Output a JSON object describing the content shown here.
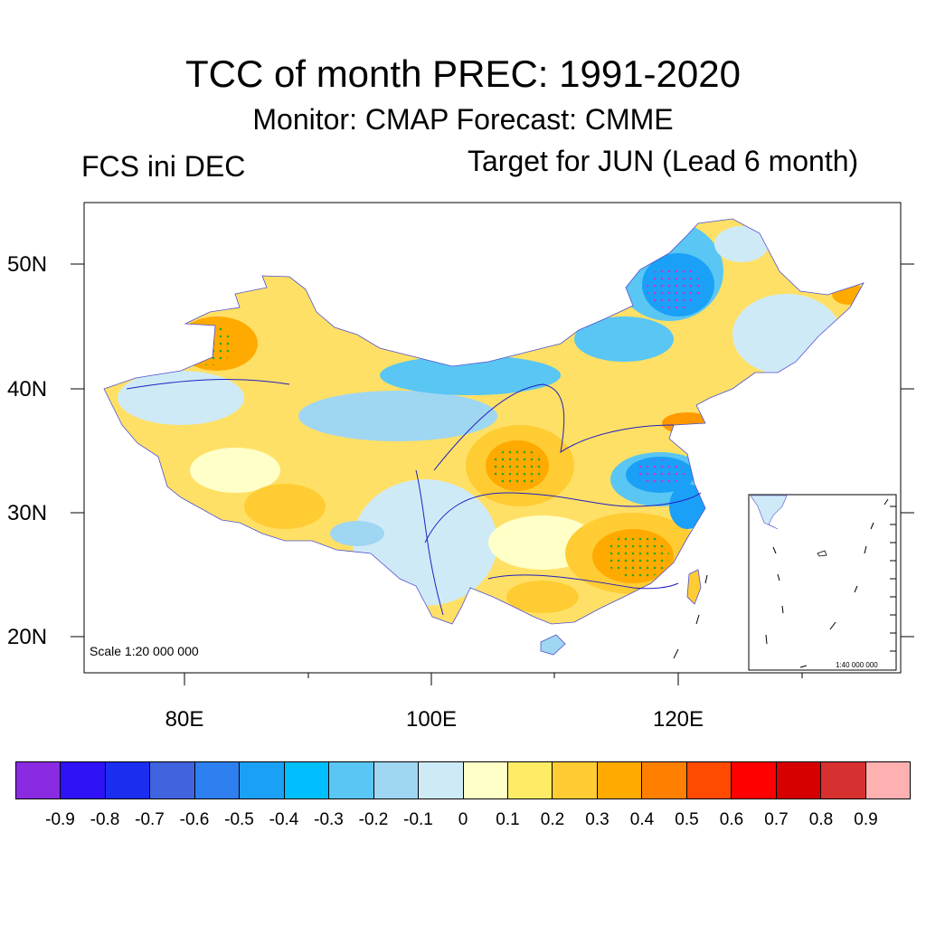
{
  "title": "TCC of month PREC: 1991-2020",
  "subtitle": "Monitor: CMAP   Forecast: CMME",
  "left_label": "FCS ini DEC",
  "right_label": "Target for JUN (Lead 6 month)",
  "lat_labels": [
    "50N",
    "40N",
    "30N",
    "20N"
  ],
  "lon_labels": [
    "80E",
    "100E",
    "120E"
  ],
  "scale_main": "Scale 1:20 000 000",
  "scale_inset": "1:40 000 000",
  "colorbar": {
    "colors": [
      "#8a2be2",
      "#2f12f5",
      "#1c2df2",
      "#4064df",
      "#2e7ff0",
      "#1aa0f7",
      "#00bfff",
      "#5ac6f3",
      "#9fd6f2",
      "#cfeaf7",
      "#ffffc8",
      "#ffec66",
      "#ffcc33",
      "#ffaa00",
      "#ff7f00",
      "#ff4a00",
      "#ff0000",
      "#d60000",
      "#d63030",
      "#ffb0b0"
    ],
    "ticks": [
      "-0.9",
      "-0.8",
      "-0.7",
      "-0.6",
      "-0.5",
      "-0.4",
      "-0.3",
      "-0.2",
      "-0.1",
      "0",
      "0.1",
      "0.2",
      "0.3",
      "0.4",
      "0.5",
      "0.6",
      "0.7",
      "0.8",
      "0.9"
    ]
  },
  "regions": [
    {
      "name": "north-xinjiang-positive",
      "level": "0.4",
      "color": "#ffb300"
    },
    {
      "name": "northeast-negative",
      "level": "-0.4",
      "color": "#1aa0f7"
    },
    {
      "name": "inner-mongolia-negative",
      "level": "-0.3",
      "color": "#5ac6f3"
    },
    {
      "name": "qaidam-negative",
      "level": "-0.2",
      "color": "#9fd6f2"
    },
    {
      "name": "sichuan-positive",
      "level": "0.4",
      "color": "#ffaa00"
    },
    {
      "name": "yangtze-lower-negative",
      "level": "-0.4",
      "color": "#1aa0f7"
    },
    {
      "name": "southeast-positive",
      "level": "0.4",
      "color": "#ffaa00"
    },
    {
      "name": "shandong-positive",
      "level": "0.4",
      "color": "#ff9900"
    },
    {
      "name": "tibet-positive",
      "level": "0.3",
      "color": "#ffcc33"
    }
  ]
}
